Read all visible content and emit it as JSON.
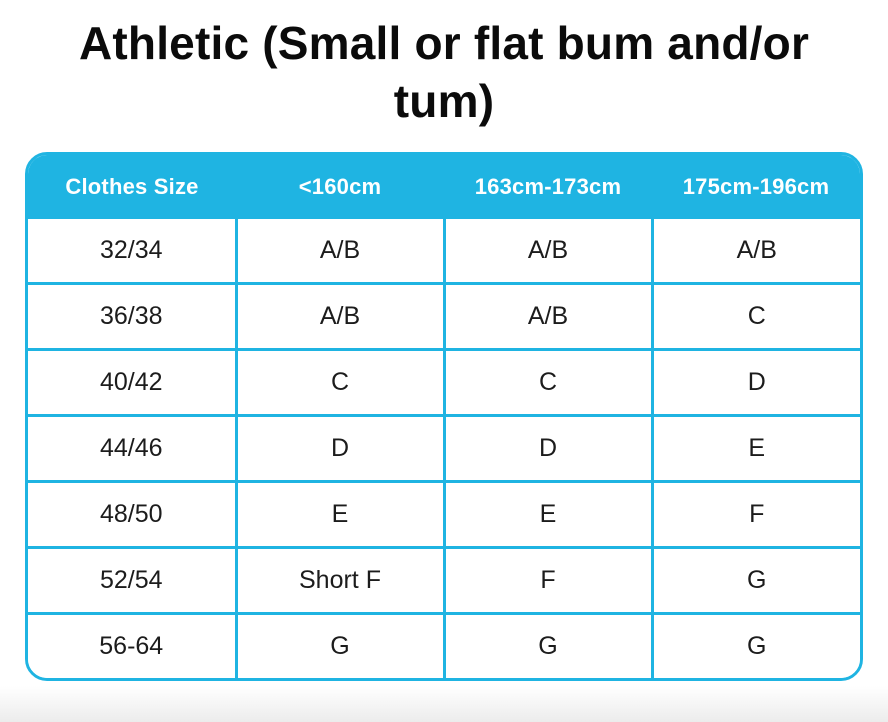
{
  "title": "Athletic (Small or flat bum and/or tum)",
  "colors": {
    "accent": "#1FB4E2",
    "header_text": "#FFFFFF",
    "title_text": "#0B0B0B",
    "body_text": "#1C1C1C",
    "bottom_fade": "#ECECEC"
  },
  "chart_data": {
    "type": "table",
    "title": "Athletic (Small or flat bum and/or tum)",
    "columns": [
      "Clothes Size",
      "<160cm",
      "163cm-173cm",
      "175cm-196cm"
    ],
    "rows": [
      [
        "32/34",
        "A/B",
        "A/B",
        "A/B"
      ],
      [
        "36/38",
        "A/B",
        "A/B",
        "C"
      ],
      [
        "40/42",
        "C",
        "C",
        "D"
      ],
      [
        "44/46",
        "D",
        "D",
        "E"
      ],
      [
        "48/50",
        "E",
        "E",
        "F"
      ],
      [
        "52/54",
        "Short F",
        "F",
        "G"
      ],
      [
        "56-64",
        "G",
        "G",
        "G"
      ]
    ]
  }
}
